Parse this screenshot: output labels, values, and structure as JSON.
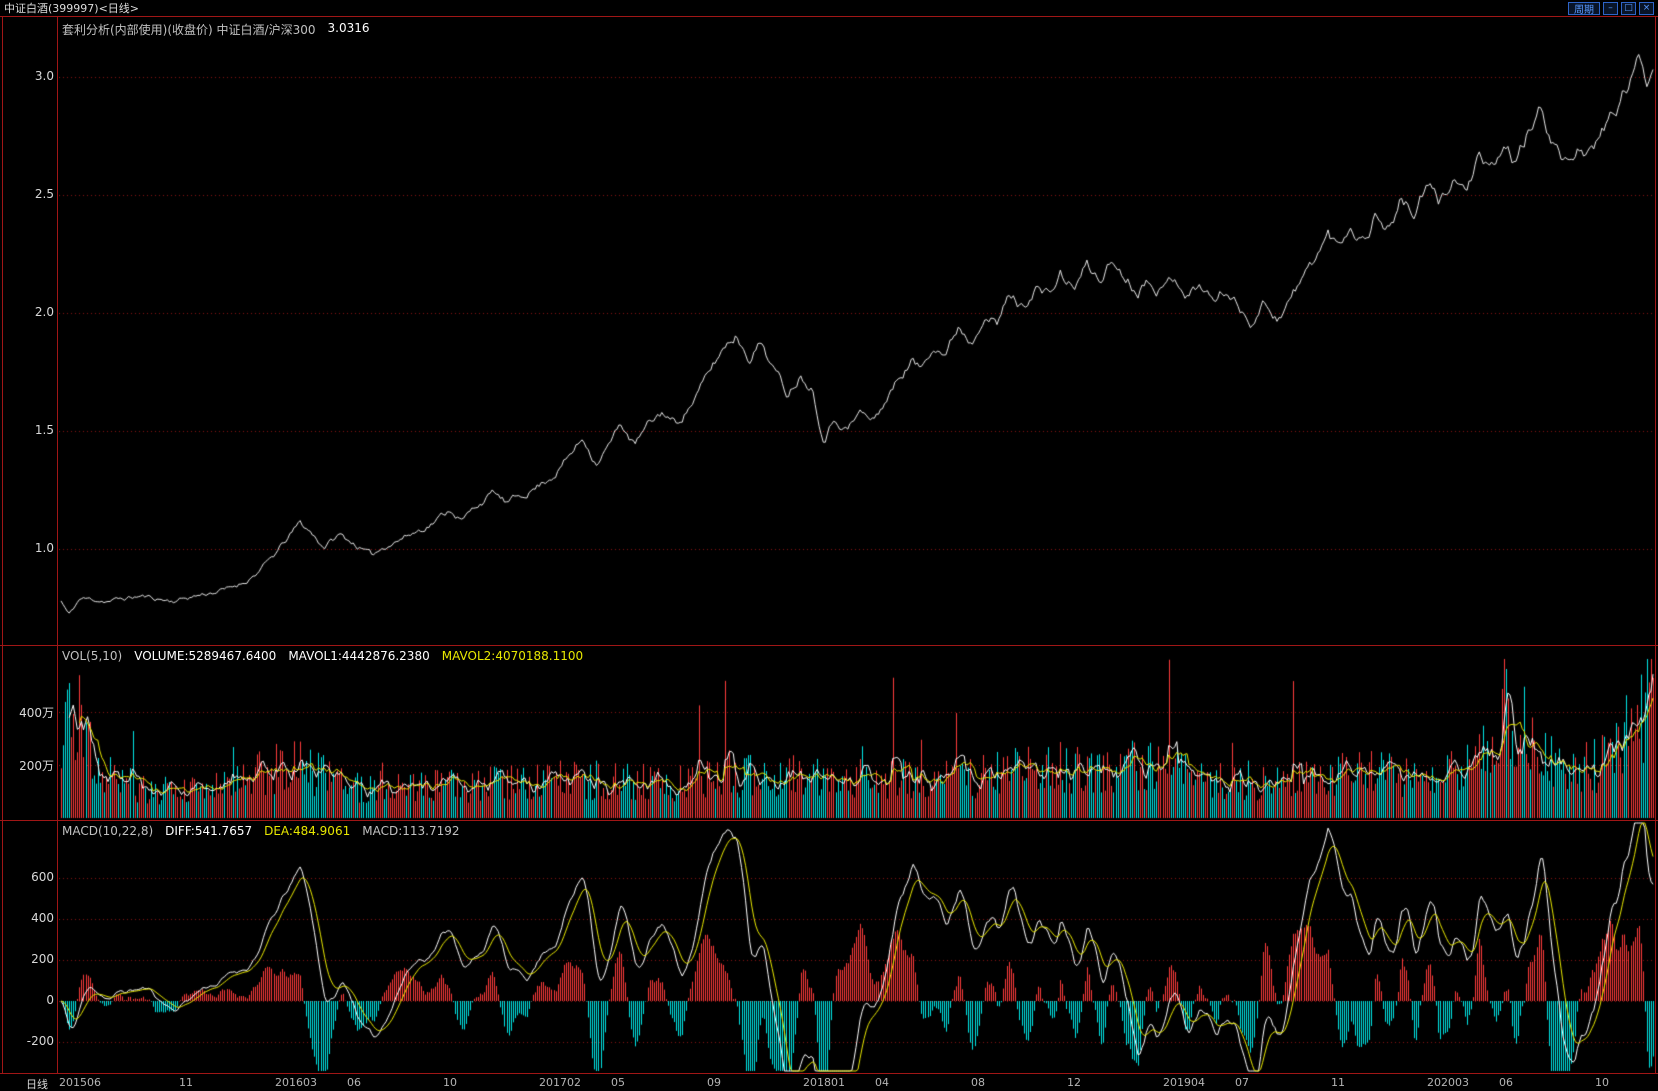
{
  "window": {
    "title": "中证白酒(399997)<日线>",
    "period_button_label": "周期",
    "minimize_label": "–",
    "restore_label": "□",
    "close_label": "×"
  },
  "price_pane": {
    "indicator_label": "套利分析(内部使用)(收盘价) 中证白酒/沪深300",
    "last_value": "3.0316",
    "y_ticks": [
      "3.0",
      "2.5",
      "2.0",
      "1.5",
      "1.0"
    ]
  },
  "volume_pane": {
    "indicator_label": "VOL(5,10)",
    "volume_label": "VOLUME:5289467.6400",
    "mavol1_label": "MAVOL1:4442876.2380",
    "mavol2_label": "MAVOL2:4070188.1100",
    "y_ticks": [
      "400万",
      "200万"
    ]
  },
  "macd_pane": {
    "indicator_label": "MACD(10,22,8)",
    "diff_label": "DIFF:541.7657",
    "dea_label": "DEA:484.9061",
    "macd_label": "MACD:113.7192",
    "y_ticks": [
      "600",
      "400",
      "200",
      "0",
      "-200"
    ]
  },
  "x_axis": {
    "period_label": "日线",
    "labels": [
      "201506",
      "11",
      "201603",
      "06",
      "10",
      "201702",
      "05",
      "09",
      "201801",
      "04",
      "08",
      "12",
      "201904",
      "07",
      "11",
      "202003",
      "06",
      "10"
    ]
  },
  "colors": {
    "up": "#ff3a3a",
    "down": "#00e6e6",
    "line": "#e8e8e8",
    "ma_white": "#ffffff",
    "ma_yellow": "#e8e800",
    "grid": "#8a1212",
    "frame": "#a01616",
    "accent_blue": "#5a9aff"
  },
  "chart_data": {
    "type": "line",
    "title": "套利分析(内部使用)(收盘价) 中证白酒/沪深300",
    "panes": [
      "price-ratio-line",
      "volume-bars-with-mavol",
      "macd-histogram-with-diff-dea"
    ],
    "final_values": {
      "close": 3.0316,
      "volume": 5289467.64,
      "mavol1": 4442876.238,
      "mavol2": 4070188.11,
      "diff": 541.7657,
      "dea": 484.9061,
      "macd": 113.7192
    },
    "n_points": 780,
    "seed": 11,
    "price_noise": 0.02,
    "macd_scale": 12000,
    "macd_params": [
      10,
      22,
      8
    ],
    "vol_ma_params": [
      5,
      10
    ],
    "price_ylim": [
      0.6,
      3.24
    ],
    "price_tick_values": [
      3.0,
      2.5,
      2.0,
      1.5,
      1.0
    ],
    "volume_tick_values": [
      400,
      200
    ],
    "volume_unit": "万",
    "volume_ylim_wan": [
      0,
      640
    ],
    "macd_tick_values": [
      600,
      400,
      200,
      0,
      -200
    ],
    "macd_ylim": [
      -350,
      880
    ],
    "x_month_offsets": [
      0,
      5,
      9,
      12,
      16,
      20,
      23,
      27,
      31,
      34,
      38,
      42,
      46,
      49,
      53,
      57,
      60,
      64
    ],
    "x_total_months": 66.5,
    "price_anchors": [
      [
        0,
        0.78
      ],
      [
        0.005,
        0.72
      ],
      [
        0.012,
        0.79
      ],
      [
        0.03,
        0.78
      ],
      [
        0.05,
        0.8
      ],
      [
        0.07,
        0.78
      ],
      [
        0.09,
        0.81
      ],
      [
        0.105,
        0.83
      ],
      [
        0.115,
        0.86
      ],
      [
        0.125,
        0.91
      ],
      [
        0.135,
        0.98
      ],
      [
        0.143,
        1.05
      ],
      [
        0.15,
        1.11
      ],
      [
        0.157,
        1.07
      ],
      [
        0.165,
        1.01
      ],
      [
        0.175,
        1.06
      ],
      [
        0.185,
        1.02
      ],
      [
        0.195,
        0.97
      ],
      [
        0.205,
        1.02
      ],
      [
        0.215,
        1.05
      ],
      [
        0.225,
        1.08
      ],
      [
        0.235,
        1.12
      ],
      [
        0.245,
        1.17
      ],
      [
        0.252,
        1.12
      ],
      [
        0.262,
        1.19
      ],
      [
        0.272,
        1.24
      ],
      [
        0.28,
        1.19
      ],
      [
        0.29,
        1.23
      ],
      [
        0.3,
        1.27
      ],
      [
        0.31,
        1.32
      ],
      [
        0.32,
        1.4
      ],
      [
        0.328,
        1.47
      ],
      [
        0.336,
        1.37
      ],
      [
        0.345,
        1.45
      ],
      [
        0.352,
        1.53
      ],
      [
        0.36,
        1.44
      ],
      [
        0.37,
        1.53
      ],
      [
        0.378,
        1.58
      ],
      [
        0.386,
        1.53
      ],
      [
        0.394,
        1.6
      ],
      [
        0.402,
        1.68
      ],
      [
        0.41,
        1.78
      ],
      [
        0.418,
        1.87
      ],
      [
        0.424,
        1.91
      ],
      [
        0.432,
        1.82
      ],
      [
        0.44,
        1.88
      ],
      [
        0.448,
        1.76
      ],
      [
        0.456,
        1.66
      ],
      [
        0.464,
        1.74
      ],
      [
        0.472,
        1.69
      ],
      [
        0.479,
        1.47
      ],
      [
        0.486,
        1.56
      ],
      [
        0.494,
        1.51
      ],
      [
        0.502,
        1.58
      ],
      [
        0.51,
        1.54
      ],
      [
        0.518,
        1.63
      ],
      [
        0.526,
        1.72
      ],
      [
        0.534,
        1.8
      ],
      [
        0.54,
        1.76
      ],
      [
        0.548,
        1.88
      ],
      [
        0.556,
        1.83
      ],
      [
        0.564,
        1.95
      ],
      [
        0.572,
        1.88
      ],
      [
        0.58,
        2.02
      ],
      [
        0.588,
        1.95
      ],
      [
        0.596,
        2.08
      ],
      [
        0.604,
        2.02
      ],
      [
        0.612,
        2.12
      ],
      [
        0.62,
        2.07
      ],
      [
        0.628,
        2.16
      ],
      [
        0.636,
        2.1
      ],
      [
        0.644,
        2.2
      ],
      [
        0.652,
        2.14
      ],
      [
        0.66,
        2.22
      ],
      [
        0.668,
        2.16
      ],
      [
        0.676,
        2.1
      ],
      [
        0.684,
        2.16
      ],
      [
        0.692,
        2.1
      ],
      [
        0.7,
        2.16
      ],
      [
        0.708,
        2.08
      ],
      [
        0.716,
        2.12
      ],
      [
        0.724,
        2.05
      ],
      [
        0.732,
        2.1
      ],
      [
        0.74,
        2.02
      ],
      [
        0.748,
        1.97
      ],
      [
        0.756,
        2.05
      ],
      [
        0.764,
        1.98
      ],
      [
        0.772,
        2.06
      ],
      [
        0.78,
        2.14
      ],
      [
        0.788,
        2.24
      ],
      [
        0.796,
        2.33
      ],
      [
        0.802,
        2.28
      ],
      [
        0.81,
        2.38
      ],
      [
        0.818,
        2.31
      ],
      [
        0.826,
        2.42
      ],
      [
        0.834,
        2.36
      ],
      [
        0.842,
        2.48
      ],
      [
        0.85,
        2.42
      ],
      [
        0.858,
        2.53
      ],
      [
        0.866,
        2.46
      ],
      [
        0.874,
        2.58
      ],
      [
        0.882,
        2.52
      ],
      [
        0.89,
        2.64
      ],
      [
        0.898,
        2.58
      ],
      [
        0.906,
        2.7
      ],
      [
        0.914,
        2.64
      ],
      [
        0.922,
        2.76
      ],
      [
        0.93,
        2.86
      ],
      [
        0.938,
        2.72
      ],
      [
        0.946,
        2.62
      ],
      [
        0.954,
        2.72
      ],
      [
        0.962,
        2.66
      ],
      [
        0.97,
        2.78
      ],
      [
        0.978,
        2.88
      ],
      [
        0.986,
        2.98
      ],
      [
        0.992,
        3.08
      ],
      [
        0.996,
        2.99
      ],
      [
        1.0,
        3.0316
      ]
    ],
    "volume_anchors_wan": [
      [
        0,
        300
      ],
      [
        0.004,
        460
      ],
      [
        0.012,
        380
      ],
      [
        0.02,
        200
      ],
      [
        0.04,
        130
      ],
      [
        0.07,
        100
      ],
      [
        0.1,
        120
      ],
      [
        0.13,
        190
      ],
      [
        0.15,
        210
      ],
      [
        0.17,
        140
      ],
      [
        0.2,
        110
      ],
      [
        0.23,
        120
      ],
      [
        0.26,
        130
      ],
      [
        0.29,
        140
      ],
      [
        0.32,
        150
      ],
      [
        0.35,
        140
      ],
      [
        0.38,
        130
      ],
      [
        0.41,
        150
      ],
      [
        0.44,
        175
      ],
      [
        0.47,
        150
      ],
      [
        0.5,
        160
      ],
      [
        0.53,
        150
      ],
      [
        0.56,
        150
      ],
      [
        0.59,
        175
      ],
      [
        0.62,
        200
      ],
      [
        0.65,
        170
      ],
      [
        0.68,
        215
      ],
      [
        0.7,
        180
      ],
      [
        0.73,
        150
      ],
      [
        0.76,
        140
      ],
      [
        0.79,
        160
      ],
      [
        0.82,
        170
      ],
      [
        0.85,
        165
      ],
      [
        0.88,
        190
      ],
      [
        0.9,
        260
      ],
      [
        0.907,
        480
      ],
      [
        0.915,
        300
      ],
      [
        0.925,
        260
      ],
      [
        0.94,
        210
      ],
      [
        0.955,
        190
      ],
      [
        0.97,
        220
      ],
      [
        0.98,
        300
      ],
      [
        0.99,
        400
      ],
      [
        1.0,
        520
      ]
    ],
    "final_volume_wan": 528.94676
  }
}
